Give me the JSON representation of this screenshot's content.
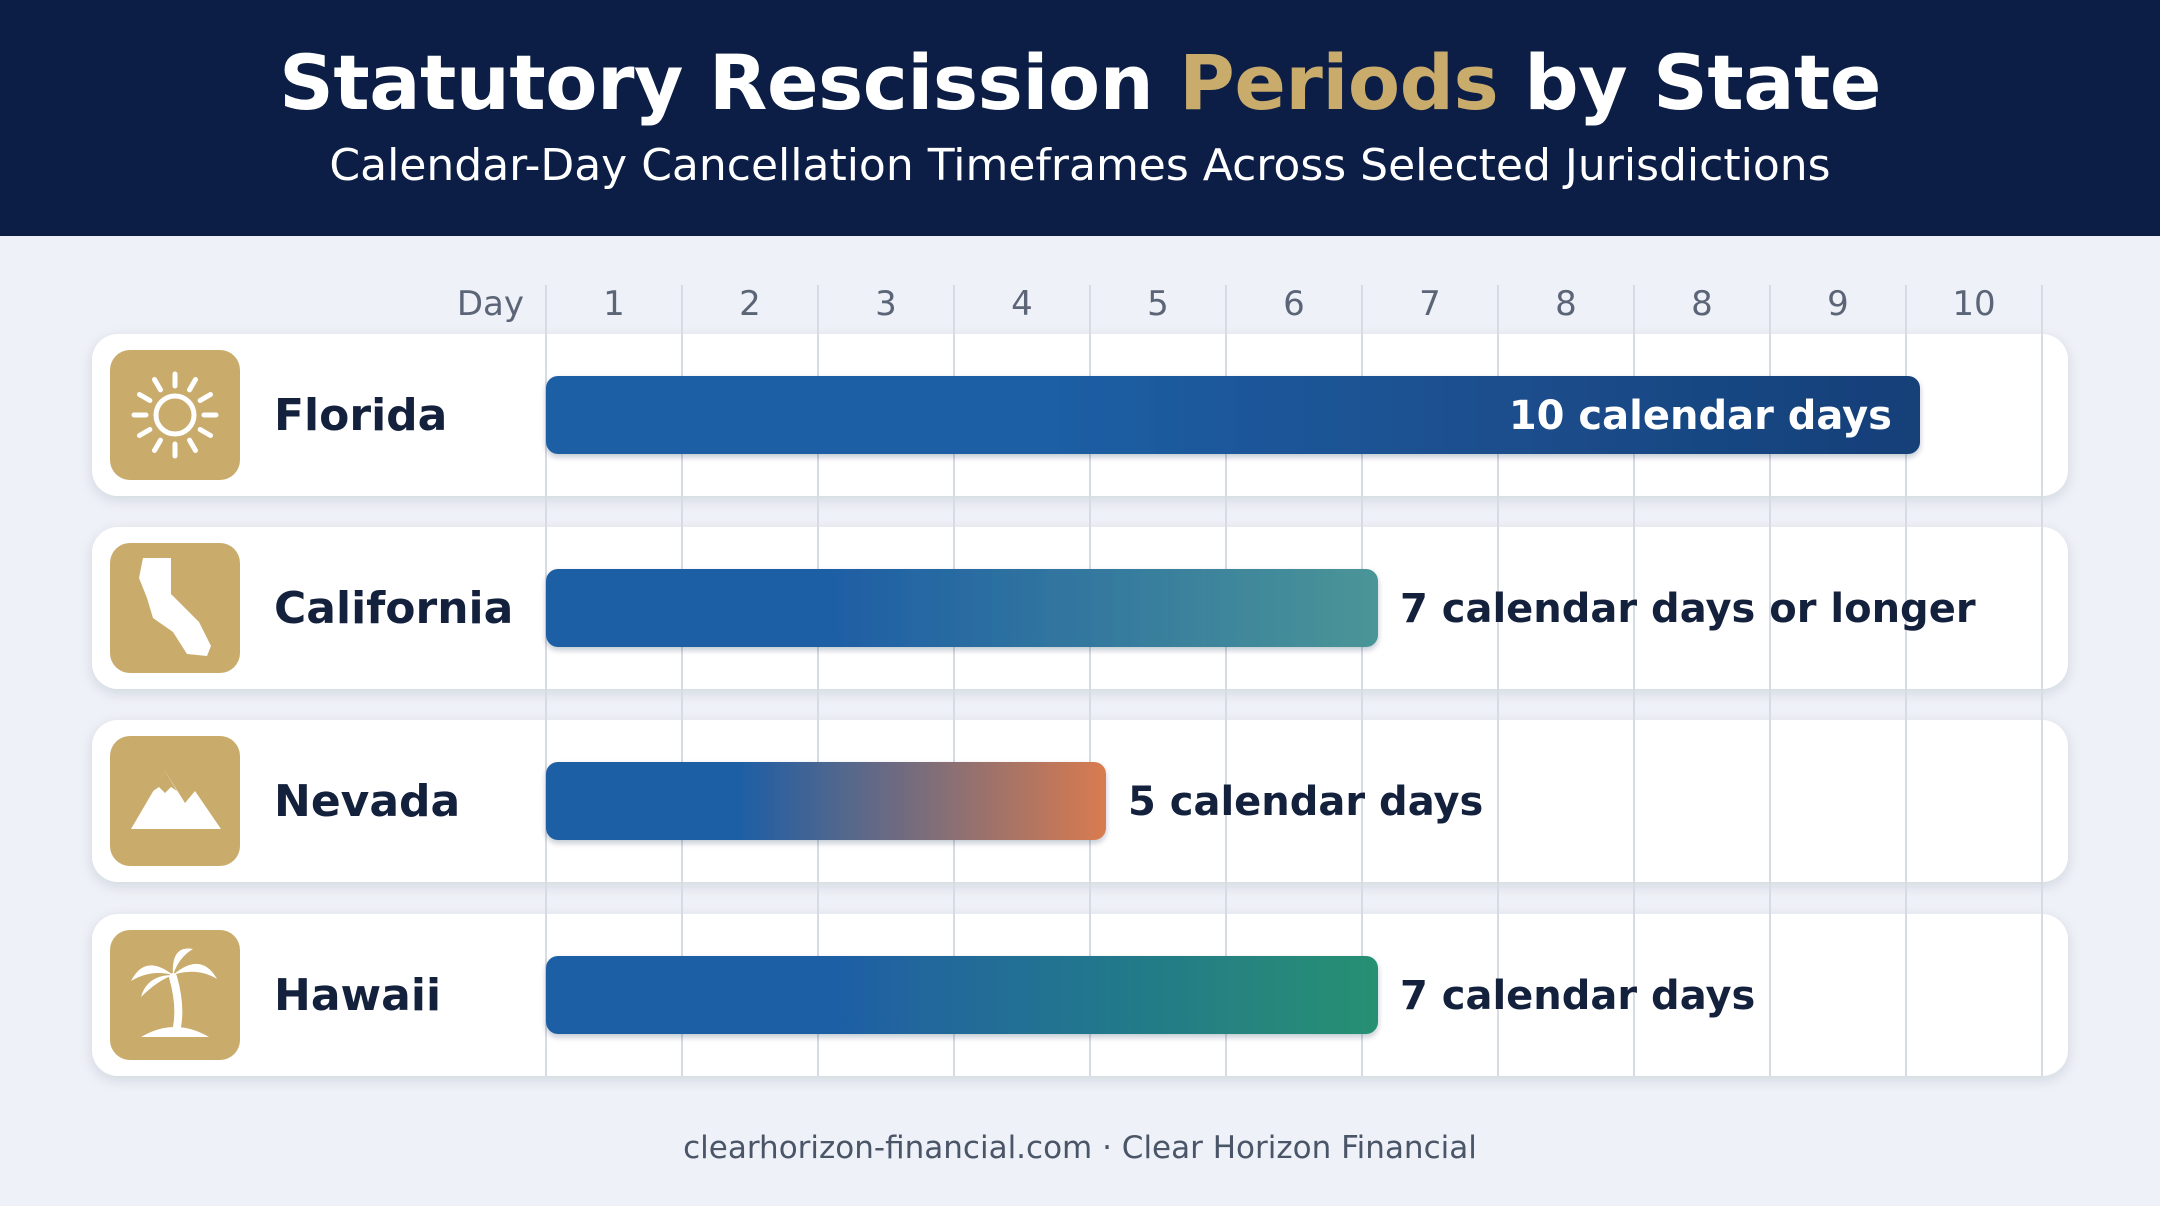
{
  "header": {
    "title_pre": "Statutory Rescission ",
    "title_accent": "Periods",
    "title_post": " by State",
    "subtitle": "Calendar-Day Cancellation Timeframes Across Selected Jurisdictions"
  },
  "chart_data": {
    "type": "bar",
    "orientation": "horizontal",
    "axis_label": "Day",
    "tick_labels": [
      "1",
      "2",
      "3",
      "4",
      "5",
      "6",
      "7",
      "8",
      "8",
      "9",
      "10"
    ],
    "xlim": [
      0,
      11
    ],
    "grid": true,
    "categories": [
      "Florida",
      "California",
      "Nevada",
      "Hawaii"
    ],
    "values": [
      10,
      7,
      5,
      7
    ],
    "value_labels": [
      "10 calendar days",
      "7 calendar days or longer",
      "5 calendar days",
      "7 calendar days"
    ],
    "icons": [
      "sun-icon",
      "california-state-icon",
      "mountain-icon",
      "palm-tree-icon"
    ],
    "bar_colors": [
      [
        "#1f5fa5",
        "#173f78"
      ],
      [
        "#1f5fa5",
        "#4a9597"
      ],
      [
        "#1f5fa5",
        "#d97b4f"
      ],
      [
        "#1f5fa5",
        "#279072"
      ]
    ],
    "icon_color": "#c9ab6c"
  },
  "footer": {
    "text": "clearhorizon-financial.com · Clear Horizon Financial"
  }
}
